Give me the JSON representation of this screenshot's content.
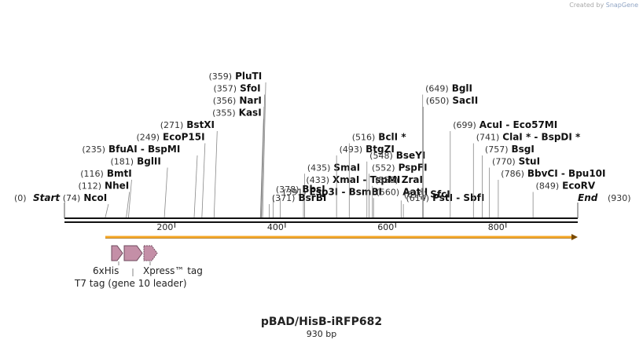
{
  "branding": {
    "created_by": "Created by",
    "app": "SnapGene"
  },
  "map": {
    "name": "pBAD/HisB-iRFP682",
    "size_label": "930 bp",
    "length": 930,
    "start_label": "Start",
    "end_label": "End",
    "start_pos": "(0)",
    "end_pos": "(930)"
  },
  "ruler": {
    "ticks": [
      {
        "pos": 200,
        "label": "200"
      },
      {
        "pos": 400,
        "label": "400"
      },
      {
        "pos": 600,
        "label": "600"
      },
      {
        "pos": 800,
        "label": "800"
      }
    ]
  },
  "sites": [
    {
      "pos": 74,
      "pos_label": "(74)",
      "name": "NcoI",
      "row": 0,
      "side": "left"
    },
    {
      "pos": 112,
      "pos_label": "(112)",
      "name": "NheI",
      "row": 1,
      "side": "left"
    },
    {
      "pos": 116,
      "pos_label": "(116)",
      "name": "BmtI",
      "row": 2,
      "side": "left"
    },
    {
      "pos": 181,
      "pos_label": "(181)",
      "name": "BglII",
      "row": 3,
      "side": "left"
    },
    {
      "pos": 235,
      "pos_label": "(235)",
      "name": "BfuAI  -  BspMI",
      "row": 4,
      "side": "left"
    },
    {
      "pos": 249,
      "pos_label": "(249)",
      "name": "EcoP15I",
      "row": 5,
      "side": "left"
    },
    {
      "pos": 271,
      "pos_label": "(271)",
      "name": "BstXI",
      "row": 6,
      "side": "left"
    },
    {
      "pos": 355,
      "pos_label": "(355)",
      "name": "KasI",
      "row": 7,
      "side": "left"
    },
    {
      "pos": 356,
      "pos_label": "(356)",
      "name": "NarI",
      "row": 8,
      "side": "left"
    },
    {
      "pos": 357,
      "pos_label": "(357)",
      "name": "SfoI",
      "row": 9,
      "side": "left"
    },
    {
      "pos": 359,
      "pos_label": "(359)",
      "name": "PluTI",
      "row": 10,
      "side": "left"
    },
    {
      "pos": 391,
      "pos_label": "(391)",
      "name": "Esp3I  -  BsmBI",
      "row": 0.5,
      "side": "mid"
    },
    {
      "pos": 433,
      "pos_label": "(433)",
      "name": "XmaI  -  TspMI",
      "row": 1.5,
      "side": "mid"
    },
    {
      "pos": 435,
      "pos_label": "(435)",
      "name": "SmaI",
      "row": 2.5,
      "side": "mid"
    },
    {
      "pos": 378,
      "pos_label": "(378)",
      "name": "BbsI",
      "row": 0.7,
      "side": "mid"
    },
    {
      "pos": 371,
      "pos_label": "(371)",
      "name": "BsrBI",
      "row": 0,
      "side": "mid"
    },
    {
      "pos": 493,
      "pos_label": "(493)",
      "name": "BtgZI",
      "row": 4,
      "side": "mid"
    },
    {
      "pos": 516,
      "pos_label": "(516)",
      "name": "BclI *",
      "row": 5,
      "side": "mid"
    },
    {
      "pos": 548,
      "pos_label": "(548)",
      "name": "BseYI",
      "row": 3.5,
      "side": "right"
    },
    {
      "pos": 552,
      "pos_label": "(552)",
      "name": "PspFI",
      "row": 2.5,
      "side": "right"
    },
    {
      "pos": 558,
      "pos_label": "(558)",
      "name": "ZraI",
      "row": 1.5,
      "side": "right"
    },
    {
      "pos": 560,
      "pos_label": "(560)",
      "name": "AatII",
      "row": 0.5,
      "side": "right"
    },
    {
      "pos": 610,
      "pos_label": "(610)",
      "name": "SfcI",
      "row": 0.3,
      "side": "right"
    },
    {
      "pos": 614,
      "pos_label": "(614)",
      "name": "PstI  -  SbfI",
      "row": 0,
      "side": "right"
    },
    {
      "pos": 649,
      "pos_label": "(649)",
      "name": "BglI",
      "row": 9,
      "side": "right"
    },
    {
      "pos": 650,
      "pos_label": "(650)",
      "name": "SacII",
      "row": 8,
      "side": "right"
    },
    {
      "pos": 699,
      "pos_label": "(699)",
      "name": "AcuI  -  Eco57MI",
      "row": 6,
      "side": "right"
    },
    {
      "pos": 741,
      "pos_label": "(741)",
      "name": "ClaI *  -  BspDI *",
      "row": 5,
      "side": "right"
    },
    {
      "pos": 757,
      "pos_label": "(757)",
      "name": "BsgI",
      "row": 4,
      "side": "right"
    },
    {
      "pos": 770,
      "pos_label": "(770)",
      "name": "StuI",
      "row": 3,
      "side": "right"
    },
    {
      "pos": 786,
      "pos_label": "(786)",
      "name": "BbvCI  -  Bpu10I",
      "row": 2,
      "side": "right"
    },
    {
      "pos": 849,
      "pos_label": "(849)",
      "name": "EcoRV",
      "row": 1,
      "side": "right"
    }
  ],
  "features": [
    {
      "name": "6xHis",
      "color": "#c48fa7"
    },
    {
      "name": "T7 tag (gene 10 leader)",
      "color": "#c48fa7"
    },
    {
      "name": "Xpress™ tag",
      "color": "#c48fa7"
    }
  ],
  "orf_color": "#f5a623"
}
